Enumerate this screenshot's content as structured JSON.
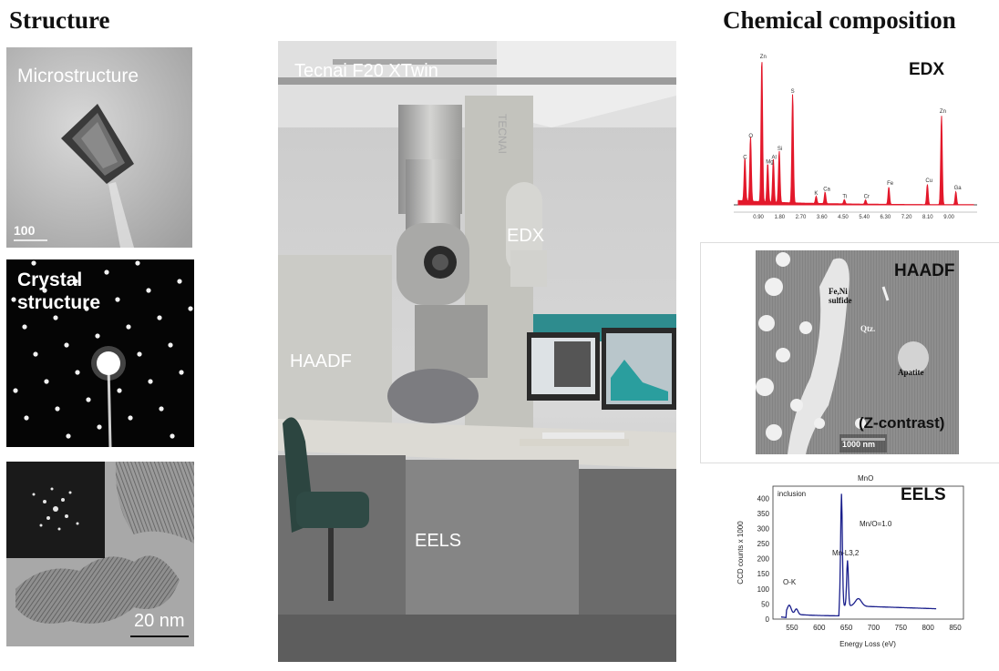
{
  "headings": {
    "structure": "Structure",
    "chemical": "Chemical composition"
  },
  "left": {
    "microstructure": {
      "label": "Microstructure",
      "scale": "100"
    },
    "crystal": {
      "label_line1": "Crystal",
      "label_line2": "structure"
    },
    "hrtem": {
      "scale": "20 nm"
    }
  },
  "center": {
    "title": "Tecnai F20 XTwin",
    "brand": "TECNAI",
    "labels": {
      "edx": "EDX",
      "haadf": "HAADF",
      "eels": "EELS"
    }
  },
  "edx": {
    "label": "EDX",
    "peaks": [
      "C",
      "O",
      "Zn",
      "Mg",
      "Al",
      "Si",
      "S",
      "K",
      "Ca",
      "Ti",
      "Cr",
      "Fe",
      "Cu",
      "Zn",
      "Ga"
    ],
    "ticks": [
      "0.90",
      "1.80",
      "2.70",
      "3.60",
      "4.50",
      "5.40",
      "6.30",
      "7.20",
      "8.10",
      "9.00"
    ]
  },
  "haadf": {
    "label": "HAADF",
    "sublabel": "(Z-contrast)",
    "ann_sulfide_1": "Fe,Ni",
    "ann_sulfide_2": "sulfide",
    "ann_qtz": "Qtz.",
    "ann_apatite": "Apatite",
    "scale": "1000 nm"
  },
  "eels": {
    "label": "EELS",
    "top_label": "MnO",
    "inclusion": "inclusion",
    "ratio": "Mn/O=1.0",
    "edge_mn": "Mn-L3,2",
    "edge_o": "O-K",
    "ylabel": "CCD counts  x 1000",
    "xlabel": "Energy Loss (eV)",
    "yticks": [
      "0",
      "50",
      "100",
      "150",
      "200",
      "250",
      "300",
      "350",
      "400"
    ],
    "xticks": [
      "550",
      "600",
      "650",
      "700",
      "750",
      "800",
      "850"
    ]
  }
}
